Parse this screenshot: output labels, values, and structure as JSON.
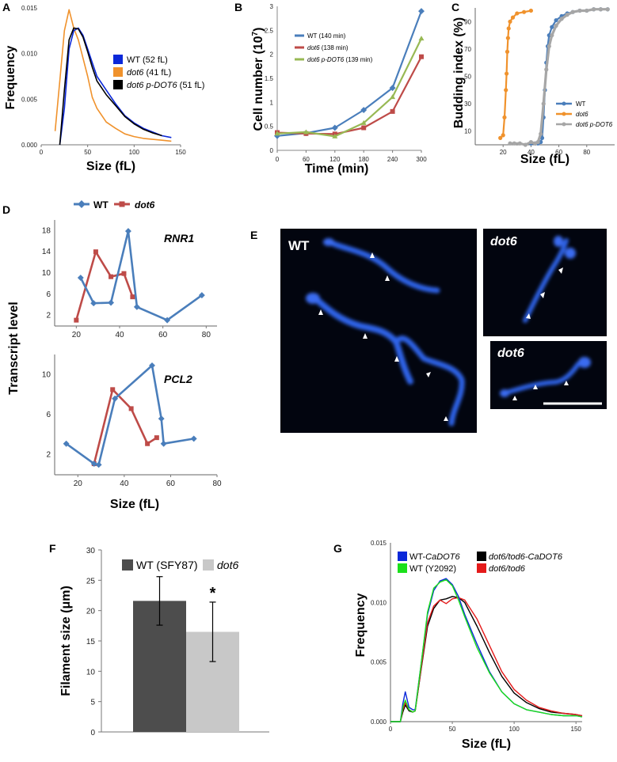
{
  "panel_labels": {
    "a": "A",
    "b": "B",
    "c": "C",
    "d": "D",
    "e": "E",
    "f": "F",
    "g": "G"
  },
  "colors": {
    "wt_blue": "#0b28d9",
    "dot6_orange": "#f0922c",
    "pdot6_black": "#000000",
    "series_blue": "#4a7ebb",
    "series_red": "#be4b48",
    "series_green": "#98b954",
    "gray": "#a6a6a6",
    "dark_bar": "#4d4d4d",
    "light_bar": "#c8c8c8",
    "g_green": "#1be01b",
    "g_red": "#e41a1a",
    "micro_bg": "#02050f"
  },
  "chart_data": [
    {
      "id": "A",
      "type": "line",
      "ylabel": "Frequency",
      "xlabel": "Size (fL)",
      "xlim": [
        0,
        150
      ],
      "ylim": [
        0,
        0.015
      ],
      "xticks": [
        "0",
        "50",
        "100",
        "150"
      ],
      "yticks": [
        "0.000",
        "0.005",
        "0.010",
        "0.015"
      ],
      "legend": [
        {
          "main": "WT",
          "rest": " (52 fL)"
        },
        {
          "main": "dot6",
          "rest": " (41 fL)"
        },
        {
          "main": "dot6 p-DOT6",
          "rest": " (51 fL)"
        }
      ],
      "series": [
        {
          "name": "WT (52 fL)",
          "x": [
            20,
            25,
            30,
            35,
            40,
            45,
            50,
            55,
            60,
            70,
            80,
            90,
            100,
            110,
            120,
            130,
            140
          ],
          "y": [
            0.0,
            0.004,
            0.0105,
            0.0125,
            0.0128,
            0.012,
            0.0105,
            0.009,
            0.0075,
            0.006,
            0.0045,
            0.0032,
            0.0024,
            0.0018,
            0.0014,
            0.001,
            0.0008
          ]
        },
        {
          "name": "dot6 (41 fL)",
          "x": [
            15,
            20,
            25,
            30,
            35,
            40,
            45,
            50,
            55,
            60,
            70,
            80,
            90,
            100,
            110,
            120,
            130,
            140
          ],
          "y": [
            0.0015,
            0.007,
            0.0125,
            0.0148,
            0.0128,
            0.0115,
            0.0095,
            0.0075,
            0.0052,
            0.004,
            0.0025,
            0.0018,
            0.0012,
            0.0009,
            0.0007,
            0.0006,
            0.0005,
            0.0004
          ]
        },
        {
          "name": "dot6 p-DOT6 (51 fL)",
          "x": [
            20,
            25,
            30,
            35,
            40,
            45,
            50,
            55,
            60,
            70,
            80,
            90,
            100,
            110,
            120,
            130
          ],
          "y": [
            0.0,
            0.006,
            0.0115,
            0.0128,
            0.0127,
            0.0118,
            0.0102,
            0.0085,
            0.007,
            0.0055,
            0.0043,
            0.0031,
            0.0023,
            0.0017,
            0.0013,
            0.001
          ]
        }
      ]
    },
    {
      "id": "B",
      "type": "line",
      "ylabel": "Cell number (10",
      "ylabel_exp": "7",
      "ylabel_end": ")",
      "xlabel": "Time (min)",
      "xlim": [
        0,
        300
      ],
      "ylim": [
        0,
        3
      ],
      "xticks": [
        "0",
        "60",
        "120",
        "180",
        "240",
        "300"
      ],
      "yticks": [
        "0",
        "0.5",
        "1",
        "1.5",
        "2",
        "2.5",
        "3"
      ],
      "legend": [
        {
          "main": "WT",
          "rest": " (140 min)"
        },
        {
          "main": "dot6",
          "rest": " (138 min)"
        },
        {
          "main": "dot6 p-DOT6",
          "rest": " (139 min)"
        }
      ],
      "series": [
        {
          "name": "WT (140 min)",
          "x": [
            0,
            60,
            120,
            180,
            240,
            300
          ],
          "y": [
            0.3,
            0.36,
            0.47,
            0.84,
            1.3,
            2.9
          ]
        },
        {
          "name": "dot6 (138 min)",
          "x": [
            0,
            60,
            120,
            180,
            240,
            300
          ],
          "y": [
            0.37,
            0.35,
            0.34,
            0.47,
            0.81,
            1.95
          ]
        },
        {
          "name": "dot6 p-DOT6 (139 min)",
          "x": [
            0,
            60,
            120,
            180,
            240,
            300
          ],
          "y": [
            0.35,
            0.38,
            0.29,
            0.57,
            1.11,
            2.33
          ]
        }
      ]
    },
    {
      "id": "C",
      "type": "line",
      "ylabel": "Budding index (%)",
      "xlabel": "Size (fL)",
      "xlim": [
        0,
        100
      ],
      "ylim": [
        0,
        100
      ],
      "xticks": [
        "20",
        "40",
        "60",
        "80"
      ],
      "yticks": [
        "10",
        "30",
        "50",
        "70",
        "90"
      ],
      "legend": [
        {
          "main": "WT",
          "rest": ""
        },
        {
          "main": "dot6",
          "rest": ""
        },
        {
          "main": "dot6 p-DOT6",
          "rest": ""
        }
      ],
      "series": [
        {
          "name": "WT",
          "x": [
            40,
            43,
            45,
            47,
            48,
            49,
            50,
            51,
            52,
            53,
            55,
            58,
            62,
            66,
            70,
            75,
            80,
            85,
            90,
            95
          ],
          "y": [
            1,
            1,
            1,
            2,
            5,
            20,
            40,
            60,
            72,
            80,
            86,
            91,
            94,
            96,
            97,
            98,
            98,
            99,
            99,
            99
          ]
        },
        {
          "name": "dot6",
          "x": [
            18,
            20,
            21,
            22,
            22.5,
            23,
            23.5,
            24,
            25,
            27,
            30,
            35,
            40
          ],
          "y": [
            5,
            7,
            20,
            40,
            52,
            68,
            78,
            85,
            90,
            93,
            96,
            97,
            98
          ]
        },
        {
          "name": "dot6 p-DOT6",
          "x": [
            25,
            28,
            32,
            36,
            40,
            43,
            45,
            47,
            49,
            51,
            53,
            55,
            58,
            62,
            66,
            70,
            75,
            80,
            85,
            90,
            95
          ],
          "y": [
            1,
            1,
            1,
            0,
            2,
            1,
            2,
            8,
            30,
            55,
            72,
            80,
            87,
            92,
            95,
            97,
            98,
            98,
            99,
            99,
            99
          ]
        }
      ]
    },
    {
      "id": "D",
      "type": "line",
      "ylabel": "Transcript level",
      "xlabel": "Size (fL)",
      "legend": [
        {
          "main": "WT",
          "rest": ""
        },
        {
          "main": "dot6",
          "rest": ""
        }
      ],
      "subplots": [
        {
          "name": "RNR1",
          "xlim": [
            10,
            85
          ],
          "ylim": [
            0,
            20
          ],
          "xticks": [
            "20",
            "40",
            "60",
            "80"
          ],
          "yticks": [
            "2",
            "6",
            "10",
            "14",
            "18"
          ],
          "series": [
            {
              "name": "WT",
              "x": [
                22,
                28,
                36,
                44,
                48,
                62,
                78
              ],
              "y": [
                9.1,
                4.3,
                4.4,
                17.9,
                3.6,
                1.1,
                5.8
              ]
            },
            {
              "name": "dot6",
              "x": [
                20,
                29,
                36,
                42,
                46
              ],
              "y": [
                1.1,
                14.0,
                9.3,
                9.9,
                5.5
              ]
            }
          ]
        },
        {
          "name": "PCL2",
          "xlim": [
            10,
            80
          ],
          "ylim": [
            0,
            12
          ],
          "xticks": [
            "20",
            "40",
            "60",
            "80"
          ],
          "yticks": [
            "2",
            "6",
            "10"
          ],
          "series": [
            {
              "name": "WT",
              "x": [
                15,
                27,
                29,
                36,
                52,
                56,
                57,
                70
              ],
              "y": [
                3.1,
                1.1,
                1.0,
                7.6,
                10.9,
                5.6,
                3.1,
                3.6
              ]
            },
            {
              "name": "dot6",
              "x": [
                27,
                35,
                43,
                50,
                54
              ],
              "y": [
                1.1,
                8.5,
                6.6,
                3.1,
                3.7
              ]
            }
          ]
        }
      ]
    },
    {
      "id": "F",
      "type": "bar",
      "ylabel": "Filament size (μm)",
      "ylim": [
        0,
        30
      ],
      "yticks": [
        "0",
        "5",
        "10",
        "15",
        "20",
        "25",
        "30"
      ],
      "categories": [
        "WT (SFY87)",
        "dot6"
      ],
      "values": [
        21.6,
        16.5
      ],
      "errors": [
        4.0,
        4.9
      ],
      "annotation": "*"
    },
    {
      "id": "G",
      "type": "line",
      "ylabel": "Frequency",
      "xlabel": "Size (fL)",
      "xlim": [
        0,
        155
      ],
      "ylim": [
        0,
        0.015
      ],
      "xticks": [
        "0",
        "50",
        "100",
        "150"
      ],
      "yticks": [
        "0.000",
        "0.005",
        "0.010",
        "0.015"
      ],
      "legend": [
        {
          "main": "WT-",
          "rest": "CaDOT6",
          "italic_rest": true
        },
        {
          "main": "dot6/tod6-CaDOT6",
          "rest": ""
        },
        {
          "main": "WT (Y2092)",
          "rest": ""
        },
        {
          "main": "dot6/tod6",
          "rest": ""
        }
      ],
      "series": [
        {
          "name": "WT-CaDOT6",
          "x": [
            0,
            8,
            10,
            12,
            15,
            18,
            20,
            25,
            30,
            35,
            40,
            45,
            50,
            55,
            60,
            70,
            80,
            90,
            100,
            110,
            120,
            130,
            140,
            150,
            155
          ],
          "y": [
            0,
            0,
            0.0015,
            0.0025,
            0.0012,
            0.001,
            0.001,
            0.005,
            0.009,
            0.011,
            0.0118,
            0.012,
            0.0115,
            0.0105,
            0.009,
            0.0065,
            0.0042,
            0.0025,
            0.0015,
            0.001,
            0.0008,
            0.0006,
            0.0005,
            0.0005,
            0.0004
          ]
        },
        {
          "name": "WT (Y2092)",
          "x": [
            0,
            8,
            10,
            12,
            15,
            18,
            20,
            25,
            30,
            35,
            40,
            45,
            50,
            55,
            60,
            70,
            80,
            90,
            100,
            110,
            120,
            130,
            140,
            150,
            155
          ],
          "y": [
            0,
            0,
            0.0012,
            0.0018,
            0.001,
            0.0008,
            0.0009,
            0.005,
            0.0092,
            0.0112,
            0.0117,
            0.0119,
            0.0114,
            0.0102,
            0.0088,
            0.0062,
            0.0041,
            0.0025,
            0.0015,
            0.001,
            0.0008,
            0.0006,
            0.0005,
            0.0005,
            0.0004
          ]
        },
        {
          "name": "dot6/tod6-CaDOT6",
          "x": [
            0,
            8,
            10,
            12,
            15,
            18,
            20,
            25,
            30,
            35,
            40,
            45,
            50,
            55,
            60,
            70,
            80,
            90,
            100,
            110,
            120,
            130,
            140,
            150,
            155
          ],
          "y": [
            0,
            0,
            0.0008,
            0.0014,
            0.0009,
            0.0008,
            0.0009,
            0.0045,
            0.008,
            0.0095,
            0.0102,
            0.0103,
            0.0105,
            0.0104,
            0.01,
            0.008,
            0.0058,
            0.0038,
            0.0024,
            0.0016,
            0.0011,
            0.0008,
            0.0007,
            0.0006,
            0.0005
          ]
        },
        {
          "name": "dot6/tod6",
          "x": [
            0,
            8,
            10,
            12,
            15,
            18,
            20,
            25,
            30,
            35,
            40,
            45,
            50,
            55,
            60,
            70,
            80,
            90,
            100,
            110,
            120,
            130,
            140,
            150,
            155
          ],
          "y": [
            0,
            0,
            0.001,
            0.0016,
            0.001,
            0.0008,
            0.0009,
            0.0046,
            0.0083,
            0.0097,
            0.0102,
            0.0099,
            0.0103,
            0.0104,
            0.0102,
            0.0086,
            0.0064,
            0.0042,
            0.0027,
            0.0018,
            0.0012,
            0.0009,
            0.0007,
            0.0006,
            0.0005
          ]
        }
      ]
    }
  ],
  "micrographs": {
    "left": {
      "label": "WT"
    },
    "top_right": {
      "label": "dot6"
    },
    "bottom_right": {
      "label": "dot6"
    }
  }
}
